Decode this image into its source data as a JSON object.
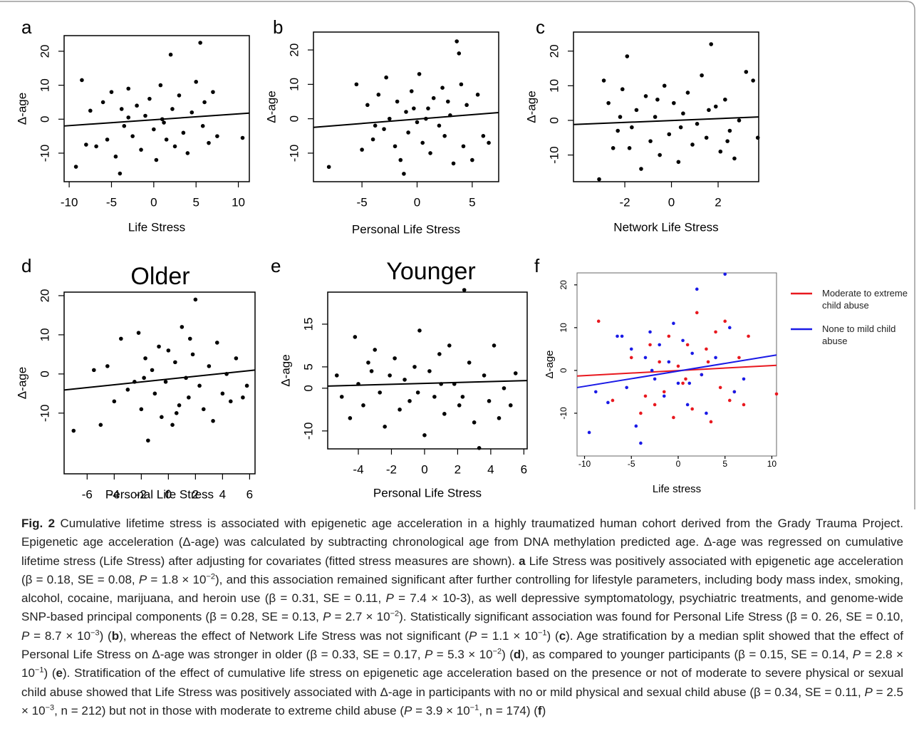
{
  "chart_data": [
    {
      "type": "scatter",
      "label": "a",
      "xlabel": "Life Stress",
      "ylabel": "Δ-age",
      "xlim": [
        -10.6,
        11.3
      ],
      "ylim": [
        -18.4,
        24.6
      ],
      "xticks": [
        -10,
        -5,
        0,
        5,
        10
      ],
      "yticks": [
        -10,
        0,
        10,
        20
      ],
      "series": [
        {
          "color": "#000000",
          "x": [
            -9.2,
            -8.5,
            -8,
            -7.5,
            -6.8,
            -6,
            -5.5,
            -5,
            -4.5,
            -4,
            -3.8,
            -3.5,
            -3,
            -2.5,
            -2,
            -1.5,
            -1,
            -0.5,
            0,
            0.3,
            0.8,
            1,
            1.5,
            2,
            2.2,
            2.5,
            3,
            3.5,
            4,
            4.5,
            5,
            5.5,
            5.8,
            6,
            6.5,
            7,
            7.5,
            10.5,
            -3,
            1.2
          ],
          "y": [
            -14,
            11.5,
            -7.5,
            2.5,
            -8,
            5,
            -6,
            8,
            -11,
            -16,
            3,
            -2,
            9,
            -5,
            4,
            -9,
            1,
            6,
            -3,
            -12,
            10,
            0,
            -6,
            19,
            3,
            -8,
            7,
            -4,
            -10,
            2,
            11,
            22.5,
            -2,
            5,
            -7,
            8,
            -5,
            -5.5,
            0.5,
            -1
          ],
          "fit": {
            "x": [
              -10.6,
              11.3
            ],
            "y": [
              -2,
              1.8
            ]
          }
        }
      ]
    },
    {
      "type": "scatter",
      "label": "b",
      "xlabel": "Personal Life Stress",
      "ylabel": "Δ-age",
      "xlim": [
        -9.4,
        7.4
      ],
      "ylim": [
        -18.3,
        25.2
      ],
      "xticks": [
        -5,
        0,
        5
      ],
      "yticks": [
        -10,
        0,
        10,
        20
      ],
      "series": [
        {
          "color": "#000000",
          "x": [
            -8,
            -5.5,
            -5,
            -4.5,
            -4,
            -3.5,
            -3,
            -2.8,
            -2.5,
            -2,
            -1.8,
            -1.5,
            -1,
            -0.8,
            -0.5,
            0,
            0.2,
            0.5,
            1,
            1.2,
            1.5,
            2,
            2.3,
            2.5,
            3,
            3.3,
            3.6,
            3.8,
            4,
            4.2,
            4.5,
            5,
            5.5,
            6,
            6.5,
            -1.2,
            0.8,
            -3.8,
            2.8,
            -0.3
          ],
          "y": [
            -14,
            10,
            -9,
            4,
            -6,
            7,
            -3,
            12,
            0,
            -8,
            5,
            -12,
            2,
            -4,
            8,
            -1,
            13,
            -7,
            3,
            -10,
            6,
            -2,
            9,
            -5,
            1,
            -13,
            22.5,
            19,
            10,
            -8,
            4,
            -12,
            7,
            -5,
            -7,
            -16,
            0,
            -2,
            5,
            3
          ],
          "fit": {
            "x": [
              -9.4,
              7.4
            ],
            "y": [
              -2.5,
              1.8
            ]
          }
        }
      ]
    },
    {
      "type": "scatter",
      "label": "c",
      "xlabel": "Network Life Stress",
      "ylabel": "Δ-age",
      "xlim": [
        -4.2,
        3.74
      ],
      "ylim": [
        -17.7,
        25.5
      ],
      "xticks": [
        -2,
        0,
        2
      ],
      "yticks": [
        -10,
        0,
        10,
        20
      ],
      "series": [
        {
          "color": "#000000",
          "x": [
            -3.1,
            -2.9,
            -2.7,
            -2.5,
            -2.3,
            -2.1,
            -1.9,
            -1.7,
            -1.5,
            -1.3,
            -1.1,
            -0.9,
            -0.7,
            -0.5,
            -0.3,
            -0.1,
            0.1,
            0.3,
            0.5,
            0.7,
            0.9,
            1.1,
            1.3,
            1.5,
            1.7,
            1.9,
            2.1,
            2.3,
            2.5,
            2.7,
            2.9,
            3.2,
            3.5,
            -1.8,
            1.6,
            0.4,
            -0.6,
            2.4,
            -2.2,
            3.7
          ],
          "y": [
            -17,
            11.5,
            5,
            -8,
            -3,
            9,
            18.5,
            -2,
            3,
            -14,
            7,
            -6,
            1,
            -10,
            10,
            -4,
            5,
            -12,
            2,
            8,
            -7,
            -1,
            13,
            -5,
            22,
            4,
            -9,
            6,
            -3,
            -11,
            0,
            14,
            11.5,
            -8,
            3,
            -2,
            6,
            -6,
            1,
            -5
          ],
          "fit": {
            "x": [
              -4.2,
              3.74
            ],
            "y": [
              -1.2,
              1
            ]
          }
        }
      ]
    },
    {
      "type": "scatter",
      "label": "d",
      "title": "Older",
      "xlabel": "Personal Life Stress",
      "ylabel": "Δ-age",
      "xlim": [
        -7.7,
        6.4
      ],
      "ylim": [
        -25.5,
        20.9
      ],
      "xticks": [
        -6,
        -4,
        -2,
        0,
        2,
        4,
        6
      ],
      "yticks": [
        -10,
        0,
        10,
        20
      ],
      "series": [
        {
          "color": "#000000",
          "x": [
            -7,
            -5.5,
            -5,
            -4.5,
            -4,
            -3.5,
            -3,
            -2.5,
            -2.2,
            -2,
            -1.7,
            -1.5,
            -1.2,
            -1,
            -0.7,
            -0.5,
            -0.2,
            0,
            0.3,
            0.5,
            0.8,
            1,
            1.3,
            1.5,
            1.8,
            2,
            2.3,
            2.6,
            3,
            3.3,
            3.6,
            4,
            4.3,
            4.6,
            5,
            5.5,
            5.8,
            -1.8,
            0.6,
            1.6
          ],
          "y": [
            -14.5,
            1,
            -13,
            2,
            -7,
            9,
            -4,
            -2,
            10.5,
            -9,
            4,
            -17,
            1,
            -5,
            7,
            -11,
            -2,
            6,
            -13,
            3,
            -8,
            12,
            -1,
            -6,
            5,
            19,
            -3,
            -9,
            2,
            -12,
            8,
            -5,
            0,
            -7,
            4,
            -6,
            -3,
            -1,
            -10,
            9
          ],
          "fit": {
            "x": [
              -7.7,
              6.4
            ],
            "y": [
              -4.1,
              1
            ]
          }
        }
      ]
    },
    {
      "type": "scatter",
      "label": "e",
      "title": "Younger",
      "xlabel": "Personal Life Stress",
      "ylabel": "Δ-age",
      "xlim": [
        -5.85,
        6.2
      ],
      "ylim": [
        -14.2,
        22.5
      ],
      "xticks": [
        -4,
        -2,
        0,
        2,
        4,
        6
      ],
      "yticks": [
        -10,
        0,
        5,
        15
      ],
      "series": [
        {
          "color": "#000000",
          "x": [
            -5.3,
            -5,
            -4.5,
            -4.2,
            -4,
            -3.7,
            -3.4,
            -3,
            -2.7,
            -2.4,
            -2.1,
            -1.8,
            -1.5,
            -1.2,
            -0.9,
            -0.6,
            -0.3,
            0,
            0.3,
            0.6,
            0.9,
            1.2,
            1.5,
            1.8,
            2.1,
            2.4,
            2.7,
            3,
            3.3,
            3.6,
            3.9,
            4.2,
            4.5,
            4.8,
            5.2,
            5.5,
            -0.4,
            2.3,
            -3.2,
            1
          ],
          "y": [
            3,
            -2,
            -7,
            12,
            1,
            -4,
            6,
            9,
            -1,
            -9,
            3,
            7,
            -5,
            2,
            -3,
            5,
            13.5,
            -11,
            4,
            -2,
            8,
            -6,
            10,
            1,
            -4,
            23,
            6,
            -8,
            -14,
            3,
            -3,
            10,
            -7,
            0,
            -4,
            3.5,
            -1,
            -2,
            4,
            1
          ],
          "fit": {
            "x": [
              -5.85,
              6.2
            ],
            "y": [
              0.5,
              1.8
            ]
          }
        }
      ]
    },
    {
      "type": "scatter",
      "label": "f",
      "xlabel": "Life stress",
      "ylabel": "Δ-age",
      "xlim": [
        -10.8,
        10.5
      ],
      "ylim": [
        -20,
        22.8
      ],
      "xticks": [
        -10,
        -5,
        0,
        5,
        10
      ],
      "yticks": [
        -10,
        0,
        10,
        20
      ],
      "series": [
        {
          "name": "Moderate to extreme child abuse",
          "color": "#e8181f",
          "x": [
            -8.5,
            -7,
            -5,
            -4,
            -3,
            -2.5,
            -2,
            -1.5,
            -1,
            -0.5,
            0,
            0.5,
            1,
            1.5,
            2,
            2.5,
            3,
            3.5,
            4,
            4.5,
            5,
            5.5,
            6,
            6.5,
            7,
            7.5,
            10.5,
            -3.5,
            0.8,
            3.2
          ],
          "y": [
            11.5,
            -7,
            3,
            -10,
            6,
            -8,
            2,
            -5,
            8,
            -11,
            1,
            -3,
            6,
            -9,
            13.5,
            -1,
            5,
            -12,
            9,
            -4,
            11.5,
            -7,
            -5,
            3,
            -8,
            8,
            -5.5,
            -6,
            -2,
            2
          ],
          "fit": {
            "x": [
              -10.8,
              10.5
            ],
            "y": [
              -1.3,
              1.2
            ]
          }
        },
        {
          "name": "None to mild child abuse",
          "color": "#1a1ae6",
          "x": [
            -9.5,
            -8.8,
            -7.5,
            -6,
            -5.5,
            -5,
            -4.5,
            -4,
            -3.5,
            -3,
            -2.5,
            -2,
            -1.5,
            -1,
            -0.5,
            0,
            0.5,
            1,
            1.5,
            2,
            2.5,
            3,
            4,
            5,
            5.5,
            6,
            7,
            -2.8,
            1.2,
            -6.5
          ],
          "y": [
            -14.5,
            -5,
            -7.5,
            8,
            -4,
            5,
            -13,
            -17,
            3,
            9,
            -2,
            6,
            -6,
            2,
            11,
            -3,
            7,
            -8,
            4,
            19,
            -1,
            -10,
            3,
            22.5,
            10,
            -5,
            -2,
            0,
            -3,
            8
          ],
          "fit": {
            "x": [
              -10.8,
              10.5
            ],
            "y": [
              -4,
              3.6
            ]
          }
        }
      ]
    }
  ],
  "caption": {
    "runs": [
      {
        "text": "Fig. 2",
        "style": "b"
      },
      " Cumulative lifetime stress is associated with epigenetic age acceleration in a highly traumatized human cohort derived from the Grady Trauma Project. Epigenetic age acceleration (Δ-age) was calculated by subtracting chronological age from DNA methylation predicted age. Δ-age was regressed on cumulative lifetime stress (Life Stress) after adjusting for covariates (fitted stress measures are shown). ",
      {
        "text": "a",
        "style": "b"
      },
      " Life Stress was positively associated with epigenetic age acceleration (β = 0.18, SE = 0.08, ",
      {
        "text": "P",
        "style": "i"
      },
      " = 1.8 × 10",
      {
        "text": "−2",
        "style": "sup"
      },
      "), and this association remained significant after further controlling for lifestyle parameters, including body mass index, smoking, alcohol, cocaine, marijuana, and heroin use (β = 0.31, SE = 0.11, ",
      {
        "text": "P",
        "style": "i"
      },
      " = 7.4 × 10-3), as well depressive symptomatology, psychiatric treatments, and genome-wide SNP-based principal components (β = 0.28, SE = 0.13, ",
      {
        "text": "P",
        "style": "i"
      },
      " = 2.7 × 10",
      {
        "text": "−2",
        "style": "sup"
      },
      "). Statistically significant association was found for Personal Life Stress (β = 0. 26, SE = 0.10, ",
      {
        "text": "P",
        "style": "i"
      },
      " = 8.7 × 10",
      {
        "text": "−3",
        "style": "sup"
      },
      ") (",
      {
        "text": "b",
        "style": "b"
      },
      "), whereas the effect of Network Life Stress was not significant (",
      {
        "text": "P",
        "style": "i"
      },
      " = 1.1 × 10",
      {
        "text": "−1",
        "style": "sup"
      },
      ") (",
      {
        "text": "c",
        "style": "b"
      },
      "). Age stratification by a median split showed that the effect of Personal Life Stress on Δ-age was stronger in older (β = 0.33, SE = 0.17, ",
      {
        "text": "P",
        "style": "i"
      },
      " = 5.3 × 10",
      {
        "text": "−2",
        "style": "sup"
      },
      ") (",
      {
        "text": "d",
        "style": "b"
      },
      "), as compared to younger participants (β = 0.15, SE = 0.14, ",
      {
        "text": "P",
        "style": "i"
      },
      " = 2.8 × 10",
      {
        "text": "−1",
        "style": "sup"
      },
      ") (",
      {
        "text": "e",
        "style": "b"
      },
      "). Stratification of the effect of cumulative life stress on epigenetic age acceleration based on the presence or not of moderate to severe physical or sexual child abuse showed that Life Stress was positively associated with Δ-age in participants with no or mild physical and sexual child abuse (β = 0.34, SE = 0.11, ",
      {
        "text": "P",
        "style": "i"
      },
      " = 2.5 × 10",
      {
        "text": "−3",
        "style": "sup"
      },
      ", n = 212) but not in those with moderate to extreme child abuse (",
      {
        "text": "P",
        "style": "i"
      },
      " = 3.9 × 10",
      {
        "text": "−1",
        "style": "sup"
      },
      ", n = 174) (",
      {
        "text": "f",
        "style": "b"
      },
      ")"
    ]
  }
}
